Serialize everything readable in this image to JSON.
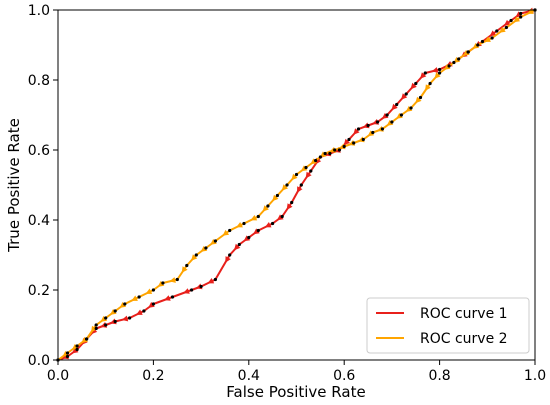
{
  "chart_data": {
    "type": "line",
    "title": "",
    "xlabel": "False Positive Rate",
    "ylabel": "True Positive Rate",
    "xlim": [
      0.0,
      1.0
    ],
    "ylim": [
      0.0,
      1.0
    ],
    "xticks": [
      0.0,
      0.2,
      0.4,
      0.6,
      0.8,
      1.0
    ],
    "yticks": [
      0.0,
      0.2,
      0.4,
      0.6,
      0.8,
      1.0
    ],
    "xtick_labels": [
      "0.0",
      "0.2",
      "0.4",
      "0.6",
      "0.8",
      "1.0"
    ],
    "ytick_labels": [
      "0.0",
      "0.2",
      "0.4",
      "0.6",
      "0.8",
      "1.0"
    ],
    "grid": false,
    "legend_position": "lower-right",
    "point_color": "#000000",
    "series": [
      {
        "name": "ROC curve 1",
        "color": "#e8201b",
        "x": [
          0.0,
          0.02,
          0.04,
          0.06,
          0.08,
          0.1,
          0.12,
          0.15,
          0.18,
          0.2,
          0.24,
          0.28,
          0.3,
          0.33,
          0.36,
          0.38,
          0.4,
          0.42,
          0.45,
          0.47,
          0.49,
          0.51,
          0.53,
          0.55,
          0.57,
          0.59,
          0.61,
          0.63,
          0.65,
          0.67,
          0.69,
          0.71,
          0.73,
          0.75,
          0.77,
          0.8,
          0.83,
          0.86,
          0.89,
          0.92,
          0.95,
          0.97,
          1.0
        ],
        "y": [
          0.0,
          0.01,
          0.03,
          0.06,
          0.09,
          0.1,
          0.11,
          0.12,
          0.14,
          0.16,
          0.18,
          0.2,
          0.21,
          0.23,
          0.3,
          0.33,
          0.35,
          0.37,
          0.39,
          0.41,
          0.45,
          0.5,
          0.54,
          0.58,
          0.59,
          0.6,
          0.63,
          0.66,
          0.67,
          0.68,
          0.7,
          0.73,
          0.76,
          0.79,
          0.82,
          0.83,
          0.85,
          0.88,
          0.91,
          0.94,
          0.97,
          0.99,
          1.0
        ]
      },
      {
        "name": "ROC curve 2",
        "color": "#ffa500",
        "x": [
          0.0,
          0.02,
          0.04,
          0.06,
          0.08,
          0.1,
          0.12,
          0.14,
          0.17,
          0.2,
          0.22,
          0.25,
          0.27,
          0.29,
          0.31,
          0.33,
          0.36,
          0.39,
          0.42,
          0.44,
          0.46,
          0.48,
          0.5,
          0.52,
          0.54,
          0.56,
          0.58,
          0.6,
          0.62,
          0.64,
          0.66,
          0.68,
          0.7,
          0.72,
          0.74,
          0.76,
          0.78,
          0.8,
          0.82,
          0.84,
          0.86,
          0.88,
          0.91,
          0.94,
          0.97,
          1.0
        ],
        "y": [
          0.0,
          0.02,
          0.04,
          0.06,
          0.1,
          0.12,
          0.14,
          0.16,
          0.18,
          0.2,
          0.22,
          0.23,
          0.27,
          0.3,
          0.32,
          0.34,
          0.37,
          0.39,
          0.41,
          0.44,
          0.47,
          0.5,
          0.53,
          0.55,
          0.57,
          0.59,
          0.6,
          0.61,
          0.62,
          0.63,
          0.65,
          0.66,
          0.68,
          0.7,
          0.72,
          0.75,
          0.79,
          0.82,
          0.84,
          0.86,
          0.88,
          0.9,
          0.92,
          0.95,
          0.98,
          1.0
        ]
      }
    ]
  }
}
